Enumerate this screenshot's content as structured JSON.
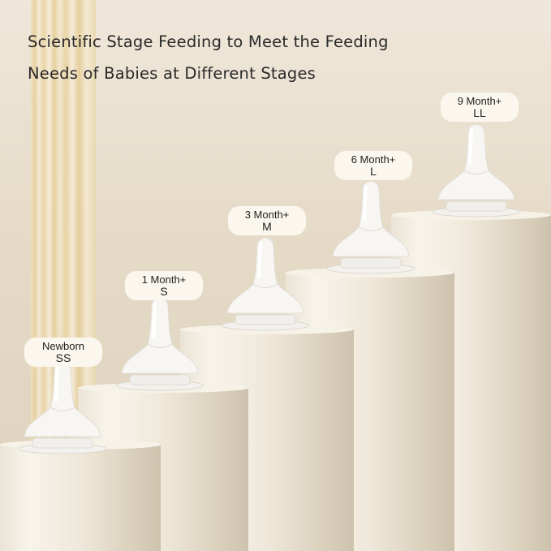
{
  "headline": {
    "line1": "Scientific Stage Feeding to Meet the Feeding",
    "line2": "Needs of Babies at Different Stages"
  },
  "stages": [
    {
      "age": "Newborn",
      "size": "SS"
    },
    {
      "age": "1 Month+",
      "size": "S"
    },
    {
      "age": "3 Month+",
      "size": "M"
    },
    {
      "age": "6 Month+",
      "size": "L"
    },
    {
      "age": "9 Month+",
      "size": "LL"
    }
  ]
}
